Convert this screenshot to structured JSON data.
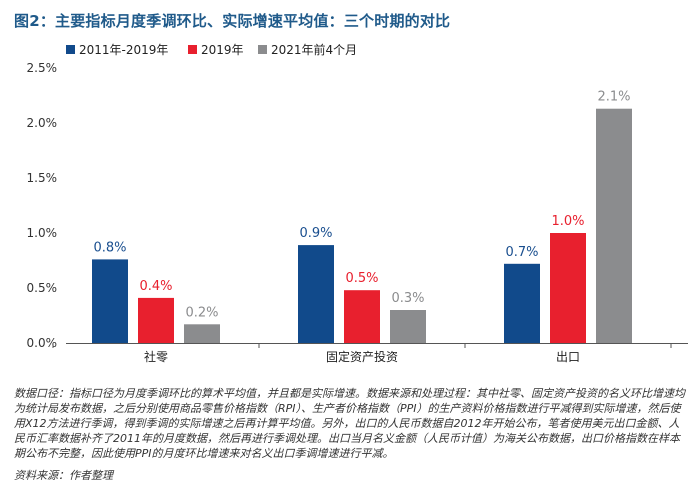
{
  "title": "图2：主要指标月度季调环比、实际增速平均值：三个时期的对比",
  "chart_data": {
    "type": "bar",
    "categories": [
      "社零",
      "固定资产投资",
      "出口"
    ],
    "series": [
      {
        "name": "2011年-2019年",
        "values": [
          0.76,
          0.89,
          0.72
        ],
        "labels": [
          "0.8%",
          "0.9%",
          "0.7%"
        ]
      },
      {
        "name": "2019年",
        "values": [
          0.41,
          0.48,
          1.0
        ],
        "labels": [
          "0.4%",
          "0.5%",
          "1.0%"
        ]
      },
      {
        "name": "2021年前4个月",
        "values": [
          0.17,
          0.3,
          2.13
        ],
        "labels": [
          "0.2%",
          "0.3%",
          "2.1%"
        ]
      }
    ],
    "ylim": [
      0,
      2.5
    ],
    "yticks": [
      0,
      0.5,
      1.0,
      1.5,
      2.0,
      2.5
    ],
    "ytick_labels": [
      "0.0%",
      "0.5%",
      "1.0%",
      "1.5%",
      "2.0%",
      "2.5%"
    ],
    "grid": false,
    "legend_position": "top-left"
  },
  "colors": {
    "series": [
      "#114a8b",
      "#e8202e",
      "#8b8c8e"
    ],
    "label_colors": [
      "#1a4f8f",
      "#e8202e",
      "#8b8c8e"
    ],
    "title": "#1f5a8a"
  },
  "notes": "数据口径：指标口径为月度季调环比的算术平均值，并且都是实际增速。数据来源和处理过程：其中社零、固定资产投资的名义环比增速均为统计局发布数据，之后分别使用商品零售价格指数（RPI）、生产者价格指数（PPI）的生产资料价格指数进行平减得到实际增速，然后使用X12方法进行季调，得到季调的实际增速之后再计算平均值。另外，出口的人民币数据自2012年开始公布，笔者使用美元出口金额、人民币汇率数据补齐了2011年的月度数据，然后再进行季调处理。出口当月名义金额（人民币计值）为海关公布数据，出口价格指数在样本期公布不完整，因此使用PPI的月度环比增速来对名义出口季调增速进行平减。",
  "source": "资料来源：作者整理"
}
